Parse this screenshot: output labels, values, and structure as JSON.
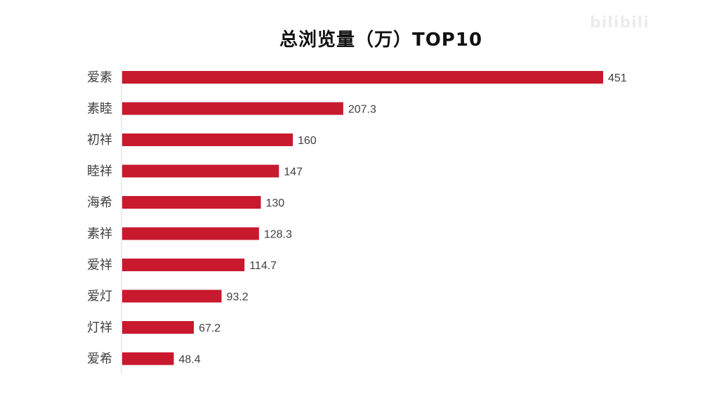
{
  "watermark": "bilibili",
  "chart_data": {
    "type": "bar",
    "orientation": "horizontal",
    "title": "总浏览量（万）TOP10",
    "xlabel": "",
    "ylabel": "",
    "categories": [
      "爱素",
      "素睦",
      "初祥",
      "睦祥",
      "海希",
      "素祥",
      "爱祥",
      "爱灯",
      "灯祥",
      "爱希"
    ],
    "values": [
      451,
      207.3,
      160,
      147,
      130,
      128.3,
      114.7,
      93.2,
      67.2,
      48.4
    ],
    "xlim": [
      0,
      451
    ],
    "grid": false,
    "legend": "none",
    "colors": {
      "bar": "#c8192e",
      "text": "#404040",
      "axis": "#d9d9d9"
    }
  }
}
